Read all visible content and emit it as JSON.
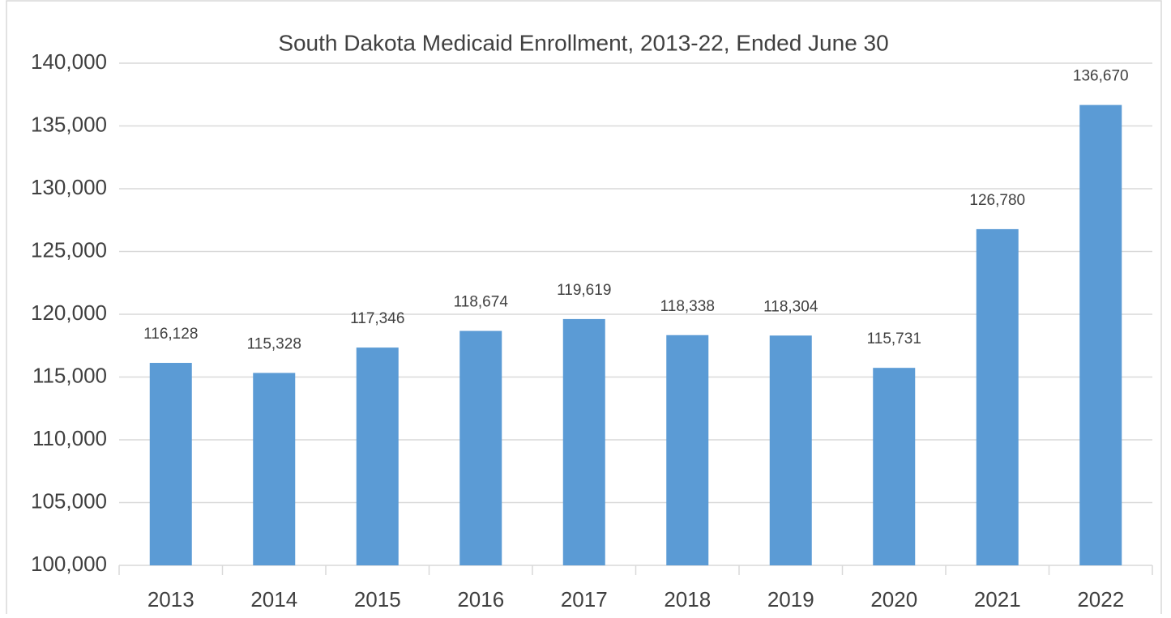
{
  "chart_data": {
    "type": "bar",
    "title": "South Dakota Medicaid Enrollment, 2013-22, Ended June 30",
    "categories": [
      "2013",
      "2014",
      "2015",
      "2016",
      "2017",
      "2018",
      "2019",
      "2020",
      "2021",
      "2022"
    ],
    "values": [
      116128,
      115328,
      117346,
      118674,
      119619,
      118338,
      118304,
      115731,
      126780,
      136670
    ],
    "value_labels": [
      "116,128",
      "115,328",
      "117,346",
      "118,674",
      "119,619",
      "118,338",
      "118,304",
      "115,731",
      "126,780",
      "136,670"
    ],
    "color": "#5b9bd5",
    "ylim": [
      100000,
      140000
    ],
    "yticks": [
      {
        "value": 100000,
        "label": "100,000"
      },
      {
        "value": 105000,
        "label": "105,000"
      },
      {
        "value": 110000,
        "label": "110,000"
      },
      {
        "value": 115000,
        "label": "115,000"
      },
      {
        "value": 120000,
        "label": "120,000"
      },
      {
        "value": 125000,
        "label": "125,000"
      },
      {
        "value": 130000,
        "label": "130,000"
      },
      {
        "value": 135000,
        "label": "135,000"
      },
      {
        "value": 140000,
        "label": "140,000"
      }
    ],
    "grid": true
  }
}
